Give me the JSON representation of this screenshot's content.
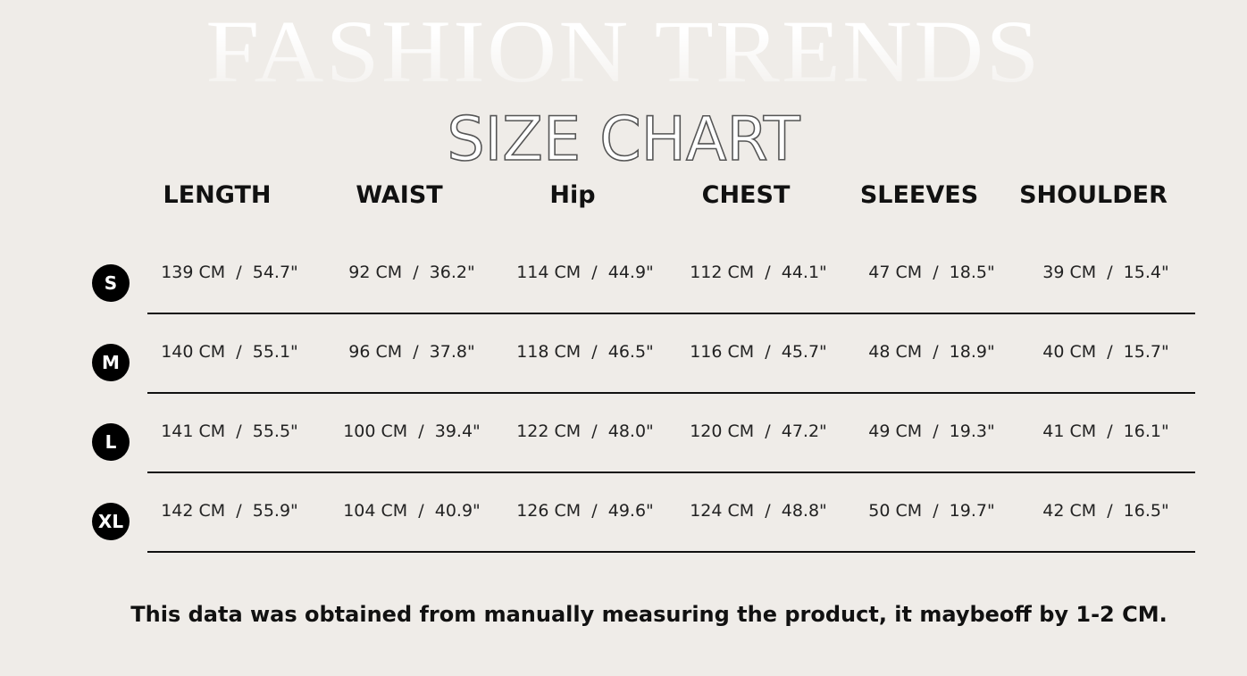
{
  "background_text": "FASHION TRENDS",
  "title": "SIZE CHART",
  "columns": [
    "LENGTH",
    "WAIST",
    "Hip",
    "CHEST",
    "SLEEVES",
    "SHOULDER"
  ],
  "rows": [
    {
      "size": "S",
      "values": [
        "139 CM  /  54.7\"",
        "92 CM  /  36.2\"",
        "114 CM  /  44.9\"",
        "112 CM  /  44.1\"",
        "47 CM  /  18.5\"",
        "39 CM  /  15.4\""
      ]
    },
    {
      "size": "M",
      "values": [
        "140 CM  /  55.1\"",
        "96 CM  /  37.8\"",
        "118 CM  /  46.5\"",
        "116 CM  /  45.7\"",
        "48 CM  /  18.9\"",
        "40 CM  /  15.7\""
      ]
    },
    {
      "size": "L",
      "values": [
        "141 CM  /  55.5\"",
        "100 CM  /  39.4\"",
        "122 CM  /  48.0\"",
        "120 CM  /  47.2\"",
        "49 CM  /  19.3\"",
        "41 CM  /  16.1\""
      ]
    },
    {
      "size": "XL",
      "values": [
        "142 CM  /  55.9\"",
        "104 CM  /  40.9\"",
        "126 CM  /  49.6\"",
        "124 CM  /  48.8\"",
        "50 CM  /  19.7\"",
        "42 CM  /  16.5\""
      ]
    }
  ],
  "note": "This data was obtained from manually measuring the product, it maybeoff by 1-2 CM.",
  "colors": {
    "background": "#efece8",
    "badge": "#000000",
    "text": "#111111"
  }
}
